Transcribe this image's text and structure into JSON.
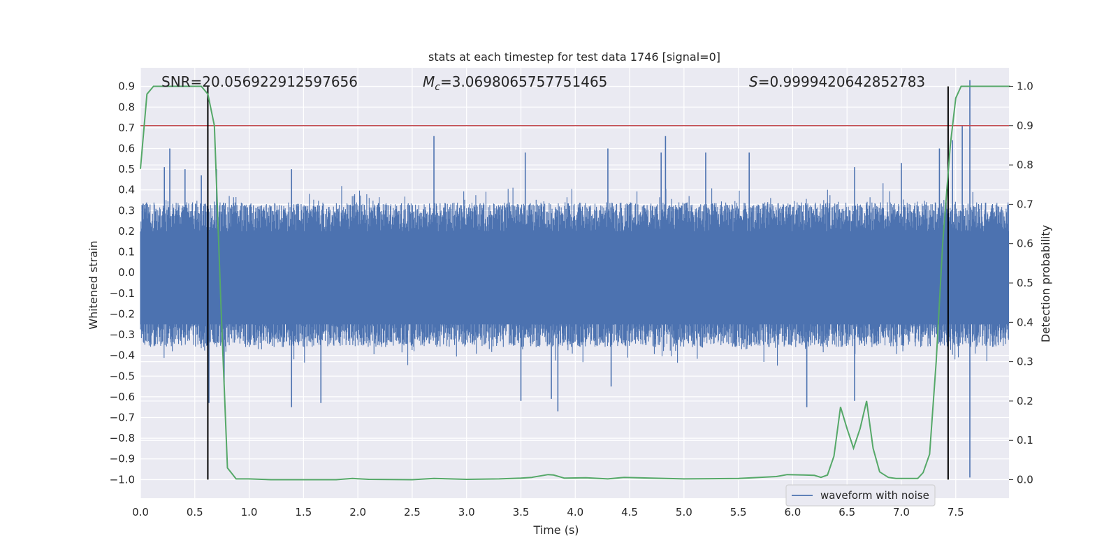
{
  "chart_data": {
    "type": "line",
    "title": "stats at each timestep for test data 1746 [signal=0]",
    "xlabel": "Time (s)",
    "ylabel": "Whitened strain",
    "y2label": "Detection probability",
    "xlim": [
      0.0,
      7.99
    ],
    "ylim": [
      -1.09,
      0.99
    ],
    "y2lim": [
      -0.047,
      1.047
    ],
    "x_ticks": [
      "0.0",
      "0.5",
      "1.0",
      "1.5",
      "2.0",
      "2.5",
      "3.0",
      "3.5",
      "4.0",
      "4.5",
      "5.0",
      "5.5",
      "6.0",
      "6.5",
      "7.0",
      "7.5"
    ],
    "y_ticks": [
      "0.9",
      "0.8",
      "0.7",
      "0.6",
      "0.5",
      "0.4",
      "0.3",
      "0.2",
      "0.1",
      "0.0",
      "−0.1",
      "−0.2",
      "−0.3",
      "−0.4",
      "−0.5",
      "−0.6",
      "−0.7",
      "−0.8",
      "−0.9",
      "−1.0"
    ],
    "y2_ticks": [
      "1.0",
      "0.9",
      "0.8",
      "0.7",
      "0.6",
      "0.5",
      "0.4",
      "0.3",
      "0.2",
      "0.1",
      "0.0"
    ],
    "grid": true,
    "legend_placement": "lower-right",
    "annotations": {
      "snr": "SNR=20.056922912597656",
      "mc_symbol": "M",
      "mc_sub": "c",
      "mc_value": "=3.0698065757751465",
      "s_symbol": "S",
      "s_value": "=0.9999420642852783"
    },
    "threshold": {
      "y2": 0.9,
      "color": "#c44e52"
    },
    "vlines": {
      "x": [
        0.62,
        7.43
      ],
      "ymin": -1.0,
      "ymax": 0.9,
      "color": "#000000"
    },
    "series": [
      {
        "name": "waveform with noise",
        "color": "#4c72b0",
        "envelope": {
          "typical_pos": 0.34,
          "typical_neg": -0.36
        },
        "spikes": [
          [
            0.22,
            0.51
          ],
          [
            0.27,
            0.6
          ],
          [
            0.41,
            0.5
          ],
          [
            0.56,
            0.47
          ],
          [
            0.63,
            -0.63
          ],
          [
            0.7,
            0.5
          ],
          [
            0.77,
            -0.53
          ],
          [
            1.39,
            -0.65
          ],
          [
            1.39,
            0.5
          ],
          [
            1.66,
            -0.63
          ],
          [
            2.7,
            0.66
          ],
          [
            3.5,
            -0.62
          ],
          [
            3.54,
            0.58
          ],
          [
            3.78,
            -0.61
          ],
          [
            3.84,
            -0.67
          ],
          [
            4.3,
            0.6
          ],
          [
            4.33,
            -0.55
          ],
          [
            4.79,
            0.58
          ],
          [
            4.83,
            0.66
          ],
          [
            5.2,
            0.58
          ],
          [
            5.6,
            0.58
          ],
          [
            6.13,
            -0.65
          ],
          [
            6.57,
            -0.62
          ],
          [
            6.57,
            0.51
          ],
          [
            7.0,
            0.53
          ],
          [
            7.35,
            0.6
          ],
          [
            7.47,
            0.64
          ],
          [
            7.63,
            0.93
          ],
          [
            7.63,
            -0.99
          ],
          [
            7.56,
            0.71
          ]
        ]
      },
      {
        "name": "detection probability",
        "color": "#55a868",
        "axis": "right",
        "x": [
          0.0,
          0.06,
          0.12,
          0.2,
          0.3,
          0.4,
          0.5,
          0.56,
          0.62,
          0.68,
          0.74,
          0.8,
          0.88,
          1.0,
          1.2,
          1.5,
          1.8,
          1.95,
          2.1,
          2.5,
          2.7,
          3.0,
          3.3,
          3.5,
          3.6,
          3.75,
          3.8,
          3.9,
          4.1,
          4.3,
          4.45,
          4.7,
          5.0,
          5.5,
          5.85,
          5.95,
          6.1,
          6.2,
          6.26,
          6.32,
          6.38,
          6.44,
          6.5,
          6.56,
          6.62,
          6.68,
          6.74,
          6.8,
          6.88,
          6.95,
          7.05,
          7.15,
          7.2,
          7.26,
          7.32,
          7.38,
          7.45,
          7.5,
          7.55,
          7.62,
          7.75,
          8.0
        ],
        "y": [
          0.79,
          0.98,
          1.0,
          1.0,
          1.0,
          1.0,
          1.0,
          1.0,
          0.98,
          0.9,
          0.45,
          0.03,
          0.002,
          0.002,
          0.0,
          0.0,
          0.0,
          0.003,
          0.001,
          0.0,
          0.003,
          0.001,
          0.002,
          0.004,
          0.006,
          0.013,
          0.012,
          0.004,
          0.005,
          0.002,
          0.006,
          0.004,
          0.002,
          0.003,
          0.008,
          0.013,
          0.012,
          0.011,
          0.006,
          0.012,
          0.06,
          0.185,
          0.13,
          0.08,
          0.13,
          0.2,
          0.08,
          0.02,
          0.006,
          0.003,
          0.003,
          0.003,
          0.018,
          0.065,
          0.3,
          0.6,
          0.85,
          0.97,
          1.0,
          1.0,
          1.0,
          1.0
        ]
      }
    ]
  }
}
